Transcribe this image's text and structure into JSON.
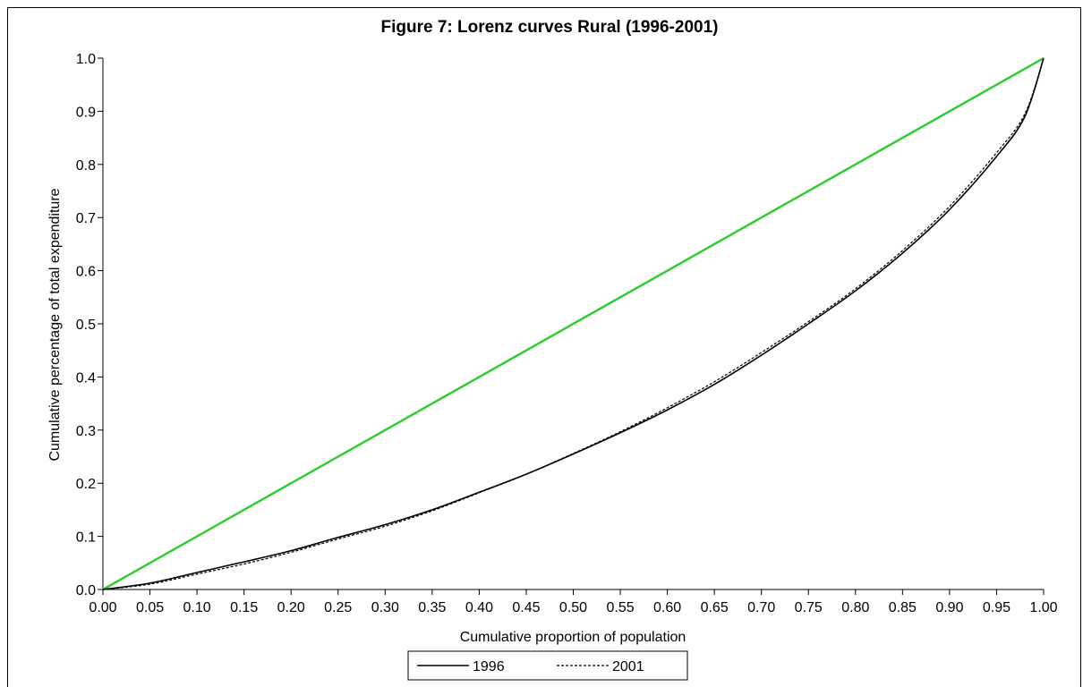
{
  "chart_data": {
    "type": "line",
    "title": "Figure 7: Lorenz curves Rural (1996-2001)",
    "xlabel": "Cumulative proportion of population",
    "ylabel": "Cumulative percentage of total expenditure",
    "xlim": [
      0,
      1
    ],
    "ylim": [
      0,
      1
    ],
    "x_ticks": [
      "0.00",
      "0.05",
      "0.10",
      "0.15",
      "0.20",
      "0.25",
      "0.30",
      "0.35",
      "0.40",
      "0.45",
      "0.50",
      "0.55",
      "0.60",
      "0.65",
      "0.70",
      "0.75",
      "0.80",
      "0.85",
      "0.90",
      "0.95",
      "1.00"
    ],
    "y_ticks": [
      "0.0",
      "0.1",
      "0.2",
      "0.3",
      "0.4",
      "0.5",
      "0.6",
      "0.7",
      "0.8",
      "0.9",
      "1.0"
    ],
    "grid": false,
    "legend_position": "bottom-center",
    "equality_line": {
      "x": [
        0,
        1
      ],
      "y": [
        0,
        1
      ],
      "color": "#33cc33"
    },
    "series": [
      {
        "name": "1996",
        "style": "solid",
        "color": "#000000",
        "x": [
          0.0,
          0.05,
          0.1,
          0.15,
          0.2,
          0.25,
          0.3,
          0.35,
          0.4,
          0.45,
          0.5,
          0.55,
          0.6,
          0.65,
          0.7,
          0.75,
          0.8,
          0.85,
          0.9,
          0.95,
          0.98,
          1.0
        ],
        "y": [
          0.0,
          0.012,
          0.032,
          0.052,
          0.073,
          0.098,
          0.122,
          0.15,
          0.183,
          0.217,
          0.255,
          0.295,
          0.338,
          0.386,
          0.441,
          0.5,
          0.562,
          0.633,
          0.715,
          0.815,
          0.89,
          1.0
        ]
      },
      {
        "name": "2001",
        "style": "dashed",
        "color": "#000000",
        "x": [
          0.0,
          0.05,
          0.1,
          0.15,
          0.2,
          0.25,
          0.3,
          0.35,
          0.4,
          0.45,
          0.5,
          0.55,
          0.6,
          0.65,
          0.7,
          0.75,
          0.8,
          0.85,
          0.9,
          0.95,
          0.98,
          1.0
        ],
        "y": [
          0.0,
          0.01,
          0.029,
          0.048,
          0.07,
          0.095,
          0.119,
          0.148,
          0.182,
          0.217,
          0.256,
          0.297,
          0.342,
          0.391,
          0.446,
          0.504,
          0.566,
          0.638,
          0.721,
          0.822,
          0.895,
          1.0
        ]
      }
    ]
  }
}
